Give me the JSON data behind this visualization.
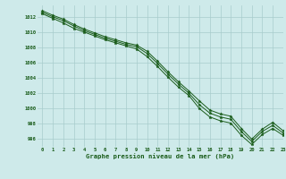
{
  "xlabel": "Graphe pression niveau de la mer (hPa)",
  "xlim": [
    -0.5,
    23
  ],
  "ylim": [
    995.0,
    1013.5
  ],
  "yticks": [
    996,
    998,
    1000,
    1002,
    1004,
    1006,
    1008,
    1010,
    1012
  ],
  "xticks": [
    0,
    1,
    2,
    3,
    4,
    5,
    6,
    7,
    8,
    9,
    10,
    11,
    12,
    13,
    14,
    15,
    16,
    17,
    18,
    19,
    20,
    21,
    22,
    23
  ],
  "bg_color": "#ceeaea",
  "grid_color": "#a8cccc",
  "line_color": "#1a5c1a",
  "series1": [
    1012.8,
    1012.2,
    1011.7,
    1011.0,
    1010.4,
    1009.9,
    1009.4,
    1009.0,
    1008.6,
    1008.3,
    1007.5,
    1006.2,
    1004.8,
    1003.5,
    1002.3,
    1001.0,
    999.8,
    999.3,
    999.0,
    997.4,
    996.0,
    997.3,
    998.2,
    997.1
  ],
  "series2": [
    1012.6,
    1012.0,
    1011.5,
    1010.8,
    1010.2,
    1009.7,
    1009.2,
    1008.8,
    1008.4,
    1008.1,
    1007.2,
    1005.9,
    1004.5,
    1003.2,
    1002.0,
    1000.5,
    999.4,
    998.9,
    998.6,
    997.0,
    995.7,
    997.0,
    997.8,
    996.8
  ],
  "series3": [
    1012.4,
    1011.8,
    1011.2,
    1010.5,
    1010.0,
    1009.5,
    1009.0,
    1008.6,
    1008.2,
    1007.8,
    1006.8,
    1005.5,
    1004.1,
    1002.8,
    1001.7,
    1000.0,
    998.9,
    998.4,
    998.1,
    996.5,
    995.3,
    996.6,
    997.4,
    996.5
  ]
}
